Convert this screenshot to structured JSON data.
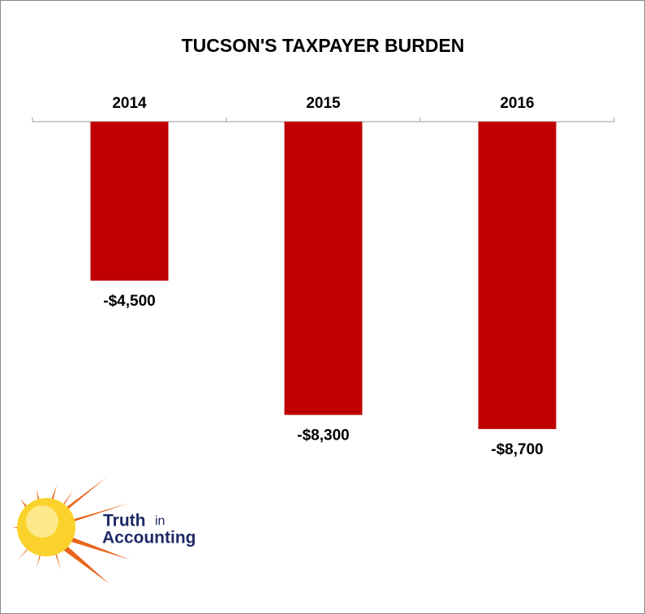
{
  "chart_data": {
    "type": "bar",
    "title": "TUCSON'S TAXPAYER BURDEN",
    "categories": [
      "2014",
      "2015",
      "2016"
    ],
    "values": [
      -4500,
      -8300,
      -8700
    ],
    "value_labels": [
      "-$4,500",
      "-$8,300",
      "-$8,700"
    ],
    "color": "#c00000"
  },
  "logo": {
    "word1": "Truth",
    "word2": "in",
    "word3": "Accounting"
  }
}
